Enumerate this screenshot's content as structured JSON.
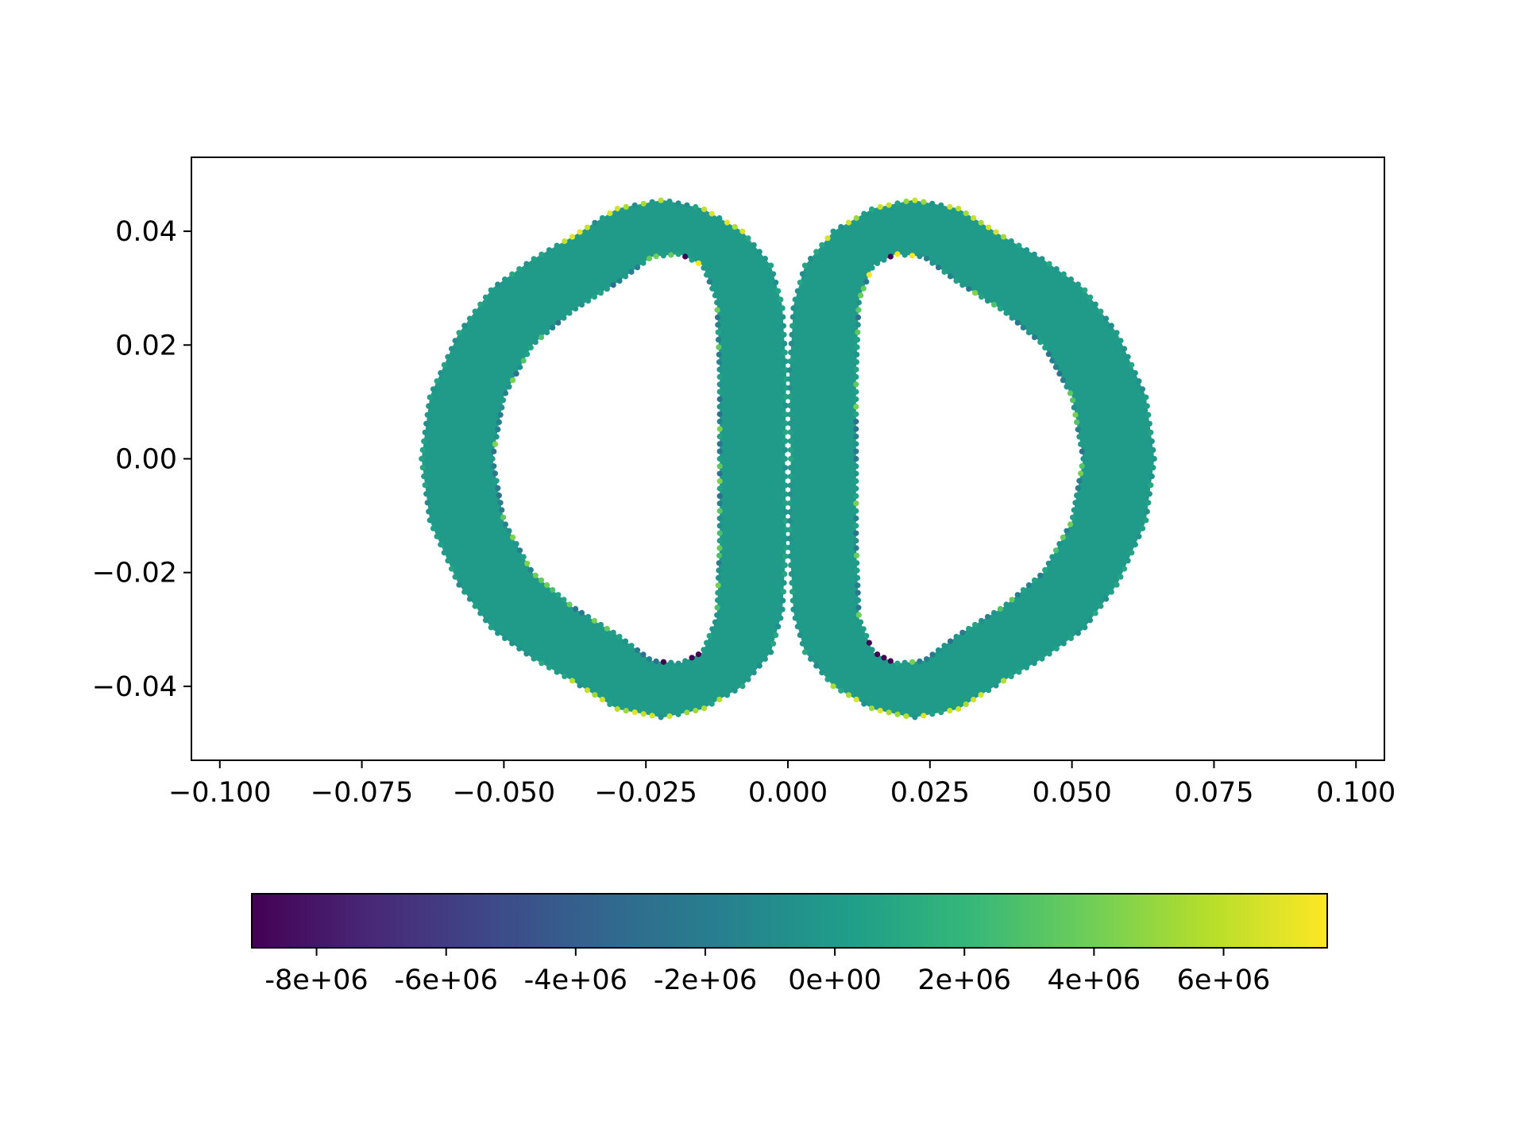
{
  "chart_data": {
    "type": "scatter",
    "title": "",
    "xlabel": "",
    "ylabel": "",
    "xlim": [
      -0.105,
      0.105
    ],
    "ylim": [
      -0.053,
      0.053
    ],
    "x_ticks": [
      {
        "value": -0.1,
        "label": "−0.100"
      },
      {
        "value": -0.075,
        "label": "−0.075"
      },
      {
        "value": -0.05,
        "label": "−0.050"
      },
      {
        "value": -0.025,
        "label": "−0.025"
      },
      {
        "value": 0.0,
        "label": "0.000"
      },
      {
        "value": 0.025,
        "label": "0.025"
      },
      {
        "value": 0.05,
        "label": "0.050"
      },
      {
        "value": 0.075,
        "label": "0.075"
      },
      {
        "value": 0.1,
        "label": "0.100"
      }
    ],
    "y_ticks": [
      {
        "value": 0.04,
        "label": "0.04"
      },
      {
        "value": 0.02,
        "label": "0.02"
      },
      {
        "value": 0.0,
        "label": "0.00"
      },
      {
        "value": -0.02,
        "label": "−0.02"
      },
      {
        "value": -0.04,
        "label": "−0.04"
      }
    ],
    "grid": false,
    "colormap": "viridis",
    "colorbar": {
      "orientation": "horizontal",
      "placement": "bottom",
      "range": [
        -9000000.0,
        7600000.0
      ],
      "ticks": [
        {
          "value": -8000000.0,
          "label": "-8e+06"
        },
        {
          "value": -6000000.0,
          "label": "-6e+06"
        },
        {
          "value": -4000000.0,
          "label": "-4e+06"
        },
        {
          "value": -2000000.0,
          "label": "-2e+06"
        },
        {
          "value": 0,
          "label": "0e+00"
        },
        {
          "value": 2000000.0,
          "label": "2e+06"
        },
        {
          "value": 4000000.0,
          "label": "4e+06"
        },
        {
          "value": 6000000.0,
          "label": "6e+06"
        }
      ],
      "colors": [
        "#440154",
        "#482878",
        "#3e4989",
        "#31688e",
        "#26828e",
        "#1f9e89",
        "#35b779",
        "#6ece58",
        "#b5de2b",
        "#fde725"
      ]
    },
    "shapes": [
      {
        "name": "left lobe",
        "outer_boundary": [
          [
            -0.0005,
            0.0
          ],
          [
            -0.0003,
            0.015
          ],
          [
            -0.001,
            0.027
          ],
          [
            -0.003,
            0.034
          ],
          [
            -0.008,
            0.04
          ],
          [
            -0.015,
            0.044
          ],
          [
            -0.022,
            0.0455
          ],
          [
            -0.03,
            0.044
          ],
          [
            -0.038,
            0.039
          ],
          [
            -0.045,
            0.035
          ],
          [
            -0.052,
            0.03
          ],
          [
            -0.058,
            0.022
          ],
          [
            -0.063,
            0.011
          ],
          [
            -0.0645,
            0.0
          ],
          [
            -0.063,
            -0.011
          ],
          [
            -0.058,
            -0.022
          ],
          [
            -0.052,
            -0.03
          ],
          [
            -0.045,
            -0.035
          ],
          [
            -0.038,
            -0.039
          ],
          [
            -0.03,
            -0.044
          ],
          [
            -0.022,
            -0.0455
          ],
          [
            -0.015,
            -0.044
          ],
          [
            -0.008,
            -0.04
          ],
          [
            -0.003,
            -0.034
          ],
          [
            -0.001,
            -0.027
          ],
          [
            -0.0003,
            -0.015
          ]
        ],
        "inner_boundary": [
          [
            -0.012,
            0.0
          ],
          [
            -0.012,
            0.015
          ],
          [
            -0.0125,
            0.028
          ],
          [
            -0.015,
            0.034
          ],
          [
            -0.019,
            0.036
          ],
          [
            -0.024,
            0.0355
          ],
          [
            -0.03,
            0.031
          ],
          [
            -0.038,
            0.026
          ],
          [
            -0.045,
            0.02
          ],
          [
            -0.05,
            0.011
          ],
          [
            -0.052,
            0.0
          ],
          [
            -0.05,
            -0.011
          ],
          [
            -0.045,
            -0.02
          ],
          [
            -0.038,
            -0.026
          ],
          [
            -0.03,
            -0.031
          ],
          [
            -0.024,
            -0.0355
          ],
          [
            -0.019,
            -0.036
          ],
          [
            -0.015,
            -0.034
          ],
          [
            -0.0125,
            -0.028
          ],
          [
            -0.012,
            -0.015
          ]
        ]
      },
      {
        "name": "right lobe",
        "outer_boundary": [
          [
            0.0005,
            0.0
          ],
          [
            0.0003,
            0.015
          ],
          [
            0.001,
            0.027
          ],
          [
            0.003,
            0.034
          ],
          [
            0.008,
            0.04
          ],
          [
            0.015,
            0.044
          ],
          [
            0.022,
            0.0455
          ],
          [
            0.03,
            0.044
          ],
          [
            0.038,
            0.039
          ],
          [
            0.045,
            0.035
          ],
          [
            0.052,
            0.03
          ],
          [
            0.058,
            0.022
          ],
          [
            0.063,
            0.011
          ],
          [
            0.0645,
            0.0
          ],
          [
            0.063,
            -0.011
          ],
          [
            0.058,
            -0.022
          ],
          [
            0.052,
            -0.03
          ],
          [
            0.045,
            -0.035
          ],
          [
            0.038,
            -0.039
          ],
          [
            0.03,
            -0.044
          ],
          [
            0.022,
            -0.0455
          ],
          [
            0.015,
            -0.044
          ],
          [
            0.008,
            -0.04
          ],
          [
            0.003,
            -0.034
          ],
          [
            0.001,
            -0.027
          ],
          [
            0.0003,
            -0.015
          ]
        ],
        "inner_boundary": [
          [
            0.012,
            0.0
          ],
          [
            0.012,
            0.015
          ],
          [
            0.0125,
            0.028
          ],
          [
            0.015,
            0.034
          ],
          [
            0.019,
            0.036
          ],
          [
            0.024,
            0.0355
          ],
          [
            0.03,
            0.031
          ],
          [
            0.038,
            0.026
          ],
          [
            0.045,
            0.02
          ],
          [
            0.05,
            0.011
          ],
          [
            0.052,
            0.0
          ],
          [
            0.05,
            -0.011
          ],
          [
            0.045,
            -0.02
          ],
          [
            0.038,
            -0.026
          ],
          [
            0.03,
            -0.031
          ],
          [
            0.024,
            -0.0355
          ],
          [
            0.019,
            -0.036
          ],
          [
            0.015,
            -0.034
          ],
          [
            0.0125,
            -0.028
          ],
          [
            0.012,
            -0.015
          ]
        ]
      }
    ],
    "field_values": {
      "bulk": 0,
      "outer_edge_high": 7000000.0,
      "inner_edge_mixed": [
        -3000000.0,
        4500000.0
      ],
      "inner_corner_extreme": [
        -9000000.0,
        7500000.0
      ]
    }
  }
}
